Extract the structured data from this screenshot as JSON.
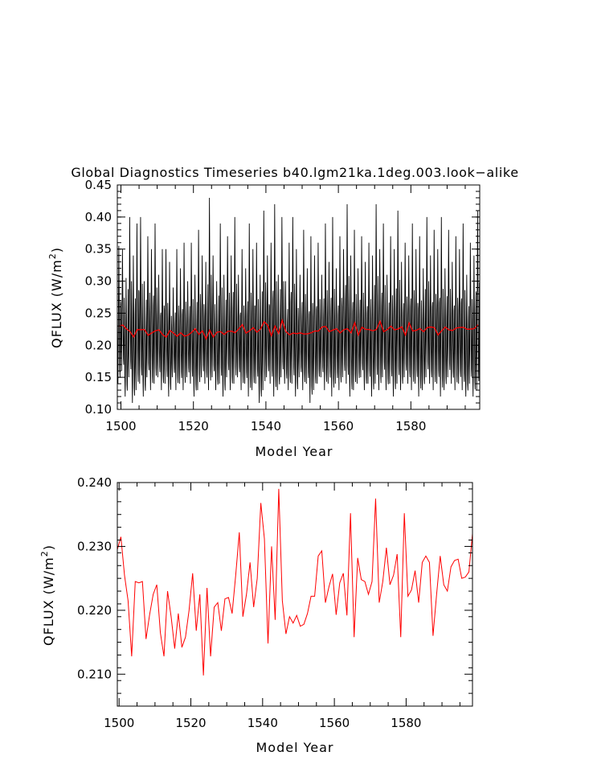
{
  "figure_title": "Global Diagnostics Timeseries b40.lgm21ka.1deg.003.look−alike",
  "chart_data": [
    {
      "type": "line",
      "title": "Global Diagnostics Timeseries b40.lgm21ka.1deg.003.look−alike",
      "xlabel": "Model Year",
      "ylabel_main": "QFLUX (W/m",
      "ylabel_sup": "2",
      "ylabel_tail": ")",
      "xlim": [
        1499,
        1599
      ],
      "ylim": [
        0.1,
        0.45
      ],
      "x_ticks": [
        1500,
        1520,
        1540,
        1560,
        1580
      ],
      "y_ticks": [
        "0.10",
        "0.15",
        "0.20",
        "0.25",
        "0.30",
        "0.35",
        "0.40",
        "0.45"
      ],
      "grid": false,
      "monthly_series": {
        "color": "#000000",
        "x_start": 1499.0,
        "step": 0.0833333,
        "peaks": [
          0.355,
          0.35,
          0.305,
          0.4,
          0.34,
          0.39,
          0.4,
          0.3,
          0.37,
          0.35,
          0.39,
          0.31,
          0.35,
          0.35,
          0.33,
          0.29,
          0.35,
          0.32,
          0.36,
          0.3,
          0.36,
          0.31,
          0.38,
          0.34,
          0.33,
          0.43,
          0.34,
          0.3,
          0.39,
          0.31,
          0.37,
          0.34,
          0.4,
          0.31,
          0.35,
          0.32,
          0.39,
          0.35,
          0.36,
          0.31,
          0.41,
          0.34,
          0.36,
          0.42,
          0.31,
          0.4,
          0.3,
          0.36,
          0.4,
          0.35,
          0.31,
          0.38,
          0.32,
          0.37,
          0.34,
          0.36,
          0.31,
          0.39,
          0.33,
          0.4,
          0.32,
          0.37,
          0.35,
          0.42,
          0.34,
          0.38,
          0.32,
          0.37,
          0.33,
          0.36,
          0.34,
          0.42,
          0.35,
          0.39,
          0.31,
          0.37,
          0.35,
          0.41,
          0.33,
          0.36,
          0.34,
          0.39,
          0.35,
          0.37,
          0.32,
          0.4,
          0.34,
          0.38,
          0.35,
          0.4,
          0.32,
          0.38,
          0.33,
          0.37,
          0.35,
          0.39,
          0.31,
          0.36,
          0.34,
          0.41
        ],
        "troughs": [
          0.14,
          0.16,
          0.12,
          0.15,
          0.11,
          0.13,
          0.14,
          0.12,
          0.15,
          0.13,
          0.14,
          0.15,
          0.13,
          0.14,
          0.12,
          0.15,
          0.13,
          0.14,
          0.13,
          0.15,
          0.14,
          0.12,
          0.13,
          0.15,
          0.14,
          0.13,
          0.15,
          0.13,
          0.14,
          0.12,
          0.15,
          0.13,
          0.14,
          0.15,
          0.13,
          0.14,
          0.12,
          0.13,
          0.14,
          0.11,
          0.13,
          0.15,
          0.14,
          0.12,
          0.13,
          0.15,
          0.14,
          0.13,
          0.14,
          0.12,
          0.15,
          0.13,
          0.14,
          0.11,
          0.13,
          0.14,
          0.15,
          0.13,
          0.14,
          0.12,
          0.14,
          0.13,
          0.15,
          0.14,
          0.12,
          0.13,
          0.14,
          0.15,
          0.13,
          0.14,
          0.12,
          0.14,
          0.13,
          0.15,
          0.13,
          0.14,
          0.12,
          0.14,
          0.13,
          0.15,
          0.14,
          0.13,
          0.14,
          0.12,
          0.13,
          0.15,
          0.14,
          0.13,
          0.14,
          0.12,
          0.13,
          0.15,
          0.14,
          0.13,
          0.14,
          0.13,
          0.12,
          0.14,
          0.12,
          0.13
        ]
      },
      "series": [
        {
          "name": "",
          "color": "#ff0000",
          "ref": "annual"
        }
      ]
    },
    {
      "type": "line",
      "title": "",
      "xlabel": "Model Year",
      "ylabel_main": "QFLUX (W/m",
      "ylabel_sup": "2",
      "ylabel_tail": ")",
      "xlim": [
        1499.5,
        1598.5
      ],
      "ylim": [
        0.205,
        0.24
      ],
      "x_ticks": [
        1500,
        1520,
        1540,
        1560,
        1580
      ],
      "y_ticks": [
        "0.210",
        "0.220",
        "0.230",
        "0.240"
      ],
      "grid": false,
      "series": [
        {
          "name": "",
          "color": "#ff0000",
          "x_start": 1499.5,
          "step": 1,
          "values": [
            0.2295,
            0.2315,
            0.2255,
            0.2215,
            0.2128,
            0.2245,
            0.2243,
            0.2245,
            0.2155,
            0.2193,
            0.2225,
            0.224,
            0.2165,
            0.2128,
            0.223,
            0.219,
            0.214,
            0.2195,
            0.2142,
            0.2158,
            0.22,
            0.2258,
            0.2168,
            0.2225,
            0.2098,
            0.2235,
            0.2128,
            0.2205,
            0.2212,
            0.2168,
            0.2218,
            0.222,
            0.2195,
            0.2255,
            0.2322,
            0.219,
            0.2225,
            0.2275,
            0.2205,
            0.225,
            0.2368,
            0.2312,
            0.2148,
            0.23,
            0.2185,
            0.239,
            0.2215,
            0.2163,
            0.219,
            0.218,
            0.2192,
            0.2175,
            0.2178,
            0.2195,
            0.2222,
            0.2222,
            0.2285,
            0.2293,
            0.2212,
            0.2237,
            0.2257,
            0.2193,
            0.2243,
            0.2258,
            0.2192,
            0.2352,
            0.2158,
            0.2282,
            0.2248,
            0.2245,
            0.2225,
            0.2245,
            0.2375,
            0.2212,
            0.2245,
            0.2298,
            0.224,
            0.2255,
            0.2288,
            0.2158,
            0.2352,
            0.2222,
            0.2232,
            0.2262,
            0.2212,
            0.2275,
            0.2285,
            0.2275,
            0.216,
            0.2225,
            0.2285,
            0.224,
            0.223,
            0.2268,
            0.2278,
            0.228,
            0.225,
            0.2252,
            0.226,
            0.232
          ]
        }
      ]
    }
  ]
}
